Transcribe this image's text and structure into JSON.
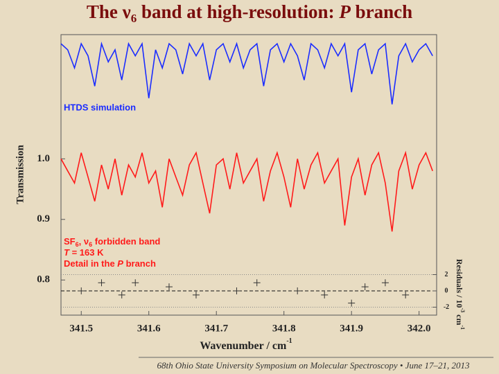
{
  "chart_data": {
    "type": "line",
    "title": [
      "The ν",
      "6",
      " band at high-resolution: ",
      "P",
      " branch"
    ],
    "x_label": [
      "Wavenumber / cm",
      "-1"
    ],
    "y_label": "Transmission",
    "y2_label": [
      "Residuals / 10",
      "-3",
      " cm",
      "-1"
    ],
    "annotations": [
      [
        "SF",
        "6",
        ", ν",
        "6",
        " forbidden band"
      ],
      [
        "T",
        " = 163 K"
      ],
      [
        "Detail in the ",
        "P",
        " branch"
      ]
    ],
    "footer": "68th Ohio State University Symposium on Molecular Spectroscopy • June 17–21, 2013",
    "xlim": [
      341.47,
      342.026
    ],
    "xticks": [
      341.5,
      341.6,
      341.7,
      341.8,
      341.9,
      {
        "value": 342.0,
        "label": "342.0"
      }
    ],
    "ylim": [
      0.742,
      1.205
    ],
    "yticks": [
      {
        "value": 0.8,
        "label": "0.8"
      },
      {
        "value": 0.9,
        "label": "0.9"
      },
      {
        "value": 1.0,
        "label": "1.0"
      }
    ],
    "y2lim": [
      -2.98,
      31.5
    ],
    "y2ticks": [
      -2,
      0,
      2
    ],
    "x": [
      341.47,
      341.48,
      341.49,
      341.5,
      341.51,
      341.52,
      341.53,
      341.54,
      341.55,
      341.56,
      341.57,
      341.58,
      341.59,
      341.6,
      341.61,
      341.62,
      341.63,
      341.64,
      341.65,
      341.66,
      341.67,
      341.68,
      341.69,
      341.7,
      341.71,
      341.72,
      341.73,
      341.74,
      341.75,
      341.76,
      341.77,
      341.78,
      341.79,
      341.8,
      341.81,
      341.82,
      341.83,
      341.84,
      341.85,
      341.86,
      341.87,
      341.88,
      341.89,
      341.9,
      341.91,
      341.92,
      341.93,
      341.94,
      341.95,
      341.96,
      341.97,
      341.98,
      341.99,
      342.0,
      342.01,
      342.02
    ],
    "series": [
      {
        "name": "HTDS simulation",
        "color": "#1a2cff",
        "values": [
          1.19,
          1.18,
          1.15,
          1.19,
          1.17,
          1.12,
          1.19,
          1.16,
          1.18,
          1.13,
          1.19,
          1.17,
          1.19,
          1.1,
          1.18,
          1.15,
          1.19,
          1.18,
          1.14,
          1.19,
          1.17,
          1.19,
          1.13,
          1.18,
          1.19,
          1.16,
          1.19,
          1.15,
          1.18,
          1.19,
          1.12,
          1.18,
          1.19,
          1.16,
          1.19,
          1.17,
          1.13,
          1.19,
          1.18,
          1.15,
          1.19,
          1.17,
          1.19,
          1.11,
          1.18,
          1.19,
          1.14,
          1.18,
          1.19,
          1.09,
          1.17,
          1.19,
          1.16,
          1.18,
          1.19,
          1.17
        ]
      },
      {
        "color": "#ff1a1a",
        "values": [
          1.0,
          0.98,
          0.96,
          1.01,
          0.97,
          0.93,
          0.99,
          0.95,
          1.0,
          0.94,
          0.99,
          0.97,
          1.01,
          0.96,
          0.98,
          0.92,
          1.0,
          0.97,
          0.94,
          0.99,
          1.01,
          0.96,
          0.91,
          0.99,
          1.0,
          0.95,
          1.01,
          0.96,
          0.98,
          1.0,
          0.93,
          0.98,
          1.01,
          0.97,
          0.92,
          1.0,
          0.95,
          0.99,
          1.01,
          0.96,
          0.98,
          1.0,
          0.89,
          0.97,
          1.0,
          0.94,
          0.99,
          1.01,
          0.96,
          0.88,
          0.98,
          1.01,
          0.95,
          0.99,
          1.01,
          0.98
        ]
      },
      {
        "type": "scatter",
        "axis": "y2",
        "color": "#333333",
        "x": [
          341.5,
          341.53,
          341.56,
          341.58,
          341.63,
          341.67,
          341.73,
          341.76,
          341.82,
          341.86,
          341.9,
          341.92,
          341.95,
          341.98
        ],
        "values": [
          0,
          1,
          -0.5,
          1,
          0.5,
          -0.5,
          0,
          1,
          0,
          -0.5,
          -1.5,
          0.5,
          1,
          -0.5
        ]
      }
    ]
  }
}
